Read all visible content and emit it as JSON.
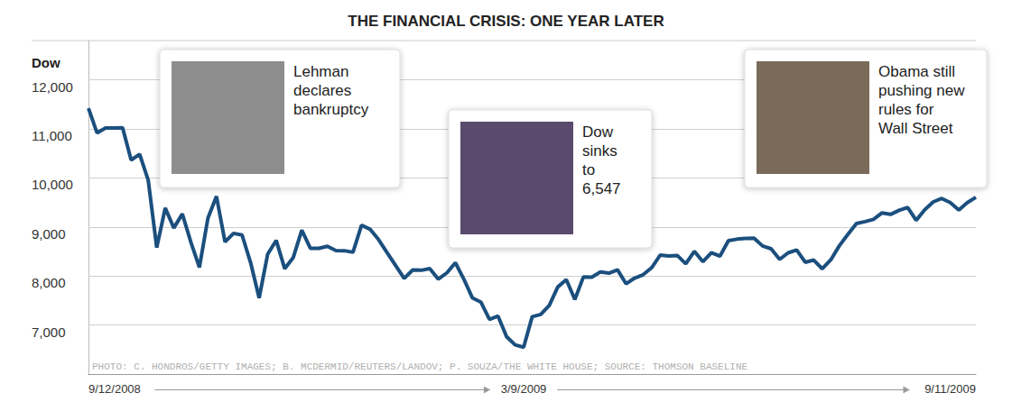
{
  "chart_data": {
    "type": "line",
    "title": "THE FINANCIAL CRISIS: ONE YEAR LATER",
    "y_label": "Dow",
    "credit": "PHOTO: C. HONDROS/GETTY IMAGES; B. MCDERMID/REUTERS/LANDOV; P. SOUZA/THE WHITE HOUSE; SOURCE: THOMSON BASELINE",
    "annotations": [
      {
        "text": "Lehman declares bankruptcy"
      },
      {
        "text": "Dow sinks to 6,547"
      },
      {
        "text": "Obama still pushing new rules for Wall Street"
      }
    ],
    "categories": [
      "9/12/2008",
      null,
      null,
      null,
      null,
      null,
      null,
      null,
      null,
      null,
      null,
      null,
      null,
      null,
      null,
      null,
      null,
      null,
      null,
      null,
      null,
      null,
      null,
      null,
      null,
      null,
      null,
      null,
      null,
      null,
      null,
      null,
      null,
      null,
      null,
      null,
      null,
      null,
      null,
      null,
      null,
      null,
      null,
      null,
      null,
      null,
      null,
      null,
      null,
      null,
      null,
      "3/9/2009",
      null,
      null,
      null,
      null,
      null,
      null,
      null,
      null,
      null,
      null,
      null,
      null,
      null,
      null,
      null,
      null,
      null,
      null,
      null,
      null,
      null,
      null,
      null,
      null,
      null,
      null,
      null,
      null,
      null,
      null,
      null,
      null,
      null,
      null,
      null,
      null,
      null,
      null,
      null,
      null,
      null,
      null,
      null,
      null,
      null,
      null,
      null,
      null,
      null,
      null,
      null,
      null,
      "9/11/2009"
    ],
    "values": [
      11421,
      10917,
      11019,
      11016,
      11022,
      10365,
      10482,
      9955,
      8579,
      9387,
      8979,
      9265,
      8691,
      8176,
      9180,
      9625,
      8695,
      8870,
      8835,
      8273,
      7552,
      8443,
      8726,
      8149,
      8376,
      8934,
      8565,
      8564,
      8604,
      8519,
      8515,
      8483,
      9034,
      8953,
      8742,
      8474,
      8212,
      7950,
      8123,
      8116,
      8149,
      7936,
      8063,
      8270,
      7932,
      7552,
      7465,
      7114,
      7182,
      6763,
      6594,
      6547,
      7170,
      7216,
      7400,
      7776,
      7925,
      7522,
      7978,
      7975,
      8083,
      8058,
      8125,
      7841,
      7957,
      8025,
      8168,
      8426,
      8409,
      8418,
      8248,
      8504,
      8292,
      8473,
      8404,
      8721,
      8750,
      8764,
      8770,
      8612,
      8555,
      8339,
      8472,
      8529,
      8280,
      8324,
      8146,
      8331,
      8616,
      8848,
      9069,
      9108,
      9154,
      9286,
      9256,
      9337,
      9399,
      9135,
      9350,
      9510,
      9580,
      9496,
      9344,
      9497,
      9605
    ],
    "color": "#1b4f7e",
    "ylim": [
      6000,
      12800
    ],
    "yticks": [
      {
        "value": 7000,
        "label": "7,000"
      },
      {
        "value": 8000,
        "label": "8,000"
      },
      {
        "value": 9000,
        "label": "9,000"
      },
      {
        "value": 10000,
        "label": "10,000"
      },
      {
        "value": 11000,
        "label": "11,000"
      },
      {
        "value": 12000,
        "label": "12,000"
      }
    ],
    "grid": true
  }
}
